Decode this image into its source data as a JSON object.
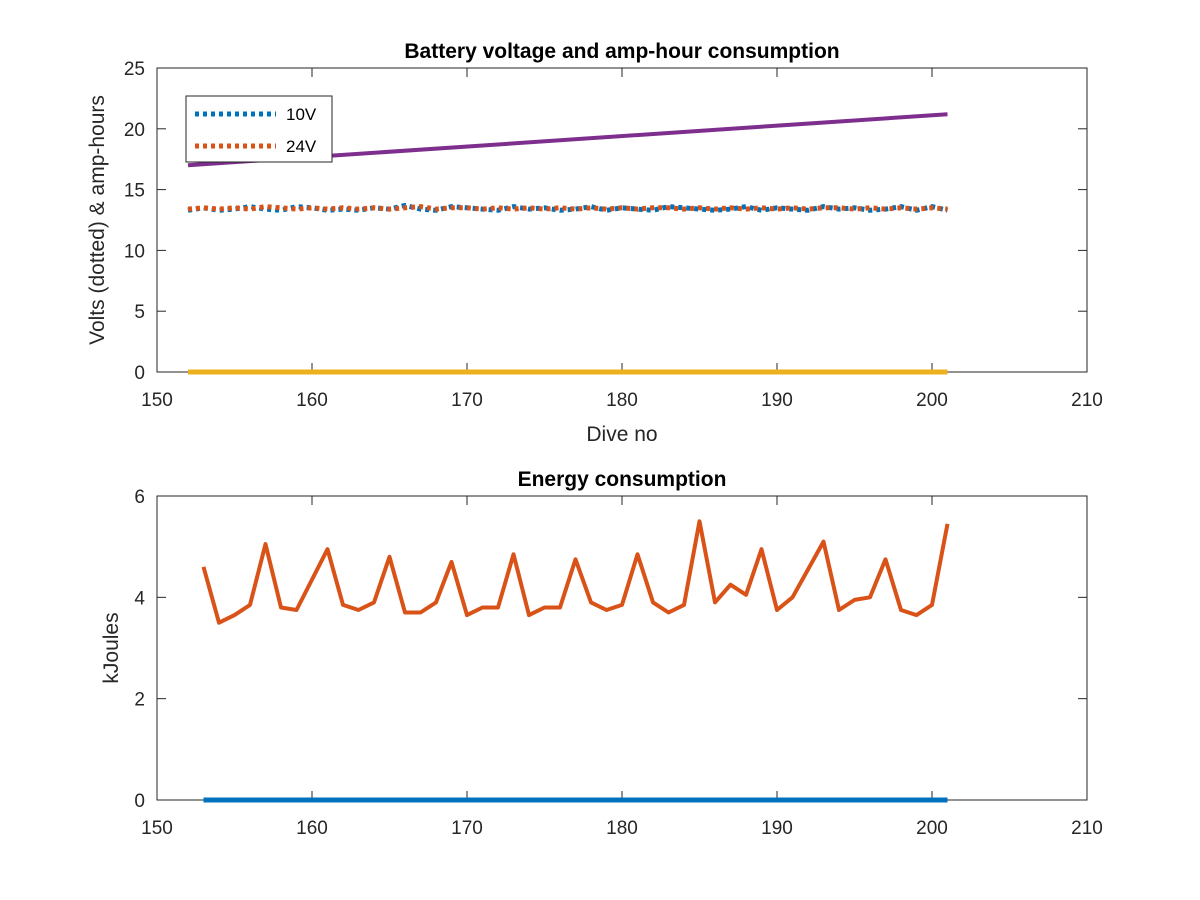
{
  "chart_data": [
    {
      "type": "line",
      "title": "Battery voltage and amp-hour consumption",
      "xlabel": "Dive no",
      "ylabel": "Volts (dotted) & amp-hours",
      "xlim": [
        150,
        210
      ],
      "ylim": [
        0,
        25
      ],
      "xticks": [
        150,
        160,
        170,
        180,
        190,
        200,
        210
      ],
      "yticks": [
        0,
        5,
        10,
        15,
        20,
        25
      ],
      "grid": false,
      "legend": {
        "placement": "top-left",
        "entries": [
          "10V",
          "24V"
        ]
      },
      "series": [
        {
          "name": "10V",
          "style": "dotted",
          "color": "#0072BD",
          "x": [
            152,
            153,
            154,
            155,
            156,
            157,
            158,
            159,
            160,
            161,
            162,
            163,
            164,
            165,
            166,
            167,
            168,
            169,
            170,
            171,
            172,
            173,
            174,
            175,
            176,
            177,
            178,
            179,
            180,
            181,
            182,
            183,
            184,
            185,
            186,
            187,
            188,
            189,
            190,
            191,
            192,
            193,
            194,
            195,
            196,
            197,
            198,
            199,
            200,
            201
          ],
          "y": [
            13.3,
            13.5,
            13.3,
            13.4,
            13.6,
            13.4,
            13.3,
            13.6,
            13.5,
            13.3,
            13.4,
            13.3,
            13.5,
            13.4,
            13.7,
            13.4,
            13.3,
            13.6,
            13.5,
            13.4,
            13.3,
            13.6,
            13.4,
            13.5,
            13.3,
            13.4,
            13.6,
            13.3,
            13.5,
            13.4,
            13.3,
            13.6,
            13.5,
            13.4,
            13.3,
            13.4,
            13.6,
            13.3,
            13.5,
            13.4,
            13.3,
            13.6,
            13.4,
            13.5,
            13.3,
            13.4,
            13.6,
            13.3,
            13.6,
            13.3
          ]
        },
        {
          "name": "24V",
          "style": "dotted",
          "color": "#D95319",
          "x": [
            152,
            153,
            154,
            155,
            156,
            157,
            158,
            159,
            160,
            161,
            162,
            163,
            164,
            165,
            166,
            167,
            168,
            169,
            170,
            171,
            172,
            173,
            174,
            175,
            176,
            177,
            178,
            179,
            180,
            181,
            182,
            183,
            184,
            185,
            186,
            187,
            188,
            189,
            190,
            191,
            192,
            193,
            194,
            195,
            196,
            197,
            198,
            199,
            200,
            201
          ],
          "y": [
            13.4,
            13.5,
            13.4,
            13.5,
            13.4,
            13.6,
            13.5,
            13.4,
            13.5,
            13.4,
            13.5,
            13.4,
            13.5,
            13.4,
            13.5,
            13.6,
            13.4,
            13.5,
            13.5,
            13.4,
            13.5,
            13.4,
            13.5,
            13.4,
            13.5,
            13.4,
            13.5,
            13.4,
            13.5,
            13.4,
            13.5,
            13.5,
            13.4,
            13.5,
            13.4,
            13.5,
            13.4,
            13.5,
            13.4,
            13.5,
            13.4,
            13.5,
            13.5,
            13.4,
            13.5,
            13.4,
            13.5,
            13.4,
            13.5,
            13.4
          ]
        },
        {
          "style": "solid",
          "color": "#7E2F8E",
          "x": [
            152,
            201
          ],
          "y": [
            17.0,
            21.2
          ]
        },
        {
          "style": "solid",
          "color": "#EDB120",
          "x": [
            152,
            201
          ],
          "y": [
            0,
            0
          ]
        }
      ]
    },
    {
      "type": "line",
      "title": "Energy consumption",
      "xlabel": "",
      "ylabel": "kJoules",
      "xlim": [
        150,
        210
      ],
      "ylim": [
        0,
        6
      ],
      "xticks": [
        150,
        160,
        170,
        180,
        190,
        200,
        210
      ],
      "yticks": [
        0,
        2,
        4,
        6
      ],
      "grid": false,
      "series": [
        {
          "style": "solid",
          "color": "#D95319",
          "x": [
            153,
            154,
            155,
            156,
            157,
            158,
            159,
            160,
            161,
            162,
            163,
            164,
            165,
            166,
            167,
            168,
            169,
            170,
            171,
            172,
            173,
            174,
            175,
            176,
            177,
            178,
            179,
            180,
            181,
            182,
            183,
            184,
            185,
            186,
            187,
            188,
            189,
            190,
            191,
            192,
            193,
            194,
            195,
            196,
            197,
            198,
            199,
            200,
            201
          ],
          "y": [
            4.6,
            3.5,
            3.65,
            3.85,
            5.05,
            3.8,
            3.75,
            4.35,
            4.95,
            3.85,
            3.75,
            3.9,
            4.8,
            3.7,
            3.7,
            3.9,
            4.7,
            3.65,
            3.8,
            3.8,
            4.85,
            3.65,
            3.8,
            3.8,
            4.75,
            3.9,
            3.75,
            3.85,
            4.85,
            3.9,
            3.7,
            3.85,
            5.5,
            3.9,
            4.25,
            4.05,
            4.95,
            3.75,
            4.0,
            4.55,
            5.1,
            3.75,
            3.95,
            4.0,
            4.75,
            3.75,
            3.65,
            3.85,
            5.45
          ]
        },
        {
          "style": "solid",
          "color": "#0072BD",
          "x": [
            153,
            201
          ],
          "y": [
            0,
            0
          ]
        }
      ]
    }
  ]
}
